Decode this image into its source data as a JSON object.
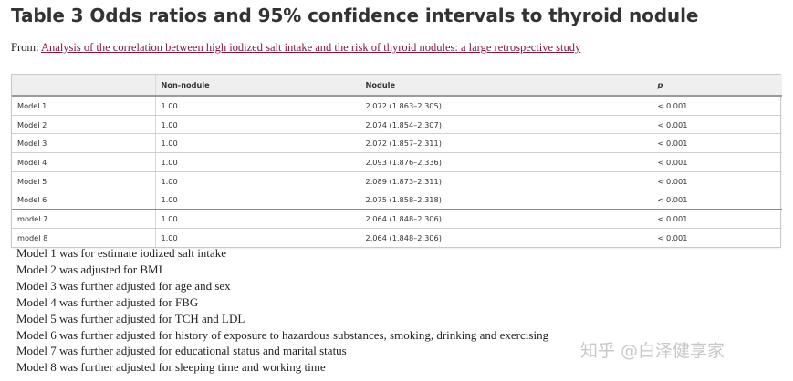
{
  "title": "Table 3 Odds ratios and 95% confidence intervals to thyroid nodule",
  "from": {
    "label": "From:",
    "link_text": "Analysis of the correlation between high iodized salt intake and the risk of thyroid nodules: a large retrospective study"
  },
  "table": {
    "headers": [
      "",
      "Non-nodule",
      "Nodule",
      "p"
    ],
    "rows": [
      [
        "Model 1",
        "1.00",
        "2.072 (1.863–2.305)",
        "< 0.001"
      ],
      [
        "Model 2",
        "1.00",
        "2.074 (1.854–2.307)",
        "< 0.001"
      ],
      [
        "Model 3",
        "1.00",
        "2.072 (1.857–2.311)",
        "< 0.001"
      ],
      [
        "Model 4",
        "1.00",
        "2.093 (1.876–2.336)",
        "< 0.001"
      ],
      [
        "Model 5",
        "1.00",
        "2.089 (1.873–2.311)",
        "< 0.001"
      ],
      [
        "Model 6",
        "1.00",
        "2.075 (1.858–2.318)",
        "< 0.001"
      ],
      [
        "model 7",
        "1.00",
        "2.064 (1.848–2.306)",
        "< 0.001"
      ],
      [
        "model 8",
        "1.00",
        "2.064 (1.848–2.306)",
        "< 0.001"
      ]
    ]
  },
  "notes": [
    "Model 1 was for estimate iodized salt intake",
    "Model 2 was adjusted for BMI",
    "Model 3 was further adjusted for age and sex",
    "Model 4 was further adjusted for FBG",
    "Model 5 was further adjusted for TCH and LDL",
    "Model 6 was further adjusted for history of exposure to hazardous substances, smoking, drinking and exercising",
    "Model 7 was further adjusted for educational status and marital status",
    "Model 8 was further adjusted for sleeping time and working time"
  ],
  "watermark": "知乎 @白泽健享家",
  "colors": {
    "link": "#8a1538",
    "header_bg": "#efefef",
    "watermark": "#c8c8c8"
  }
}
